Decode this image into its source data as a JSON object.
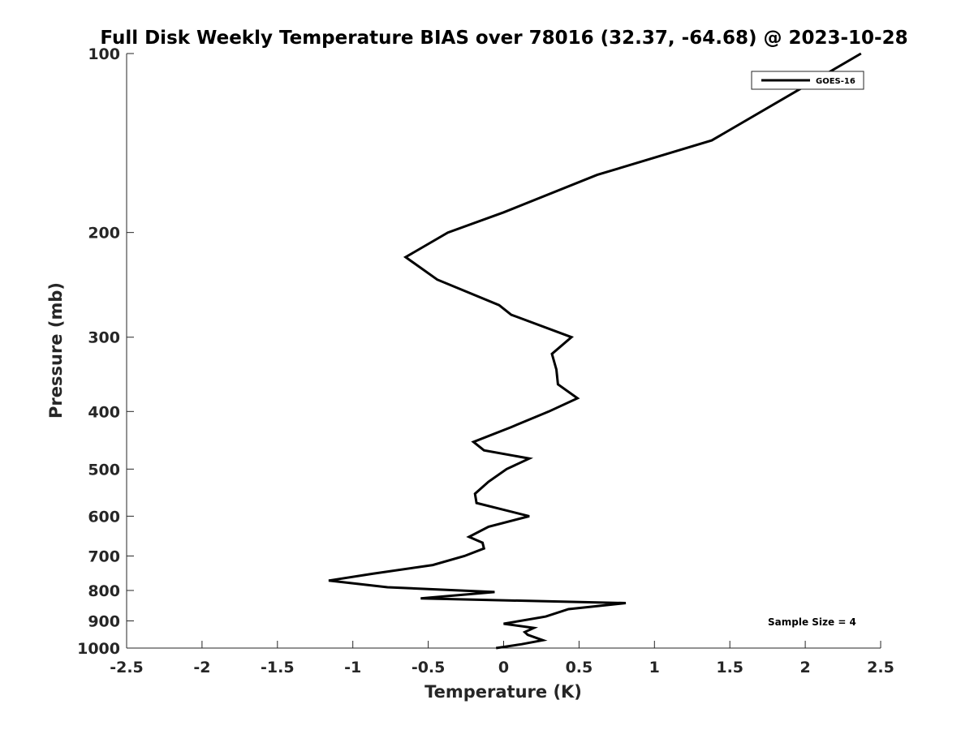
{
  "chart_data": {
    "type": "line",
    "title": "Full Disk Weekly Temperature BIAS over 78016 (32.37, -64.68) @ 2023-10-28",
    "xlabel": "Temperature (K)",
    "ylabel": "Pressure (mb)",
    "xlim": [
      -2.5,
      2.5
    ],
    "ylim": [
      100,
      1000
    ],
    "y_scale": "log",
    "y_reversed": true,
    "grid": false,
    "legend_position": "top-right",
    "x_ticks": [
      "-2.5",
      "-2",
      "-1.5",
      "-1",
      "-0.5",
      "0",
      "0.5",
      "1",
      "1.5",
      "2",
      "2.5"
    ],
    "x_tick_values": [
      -2.5,
      -2,
      -1.5,
      -1,
      -0.5,
      0,
      0.5,
      1,
      1.5,
      2,
      2.5
    ],
    "y_ticks": [
      "100",
      "200",
      "300",
      "400",
      "500",
      "600",
      "700",
      "800",
      "900",
      "1000"
    ],
    "y_tick_values": [
      100,
      200,
      300,
      400,
      500,
      600,
      700,
      800,
      900,
      1000
    ],
    "series": [
      {
        "name": "GOES-16",
        "color": "#000000",
        "points": [
          {
            "x": 2.37,
            "p": 100
          },
          {
            "x": 1.38,
            "p": 140
          },
          {
            "x": 0.62,
            "p": 160
          },
          {
            "x": 0.0,
            "p": 185
          },
          {
            "x": -0.37,
            "p": 200
          },
          {
            "x": -0.65,
            "p": 220
          },
          {
            "x": -0.44,
            "p": 240
          },
          {
            "x": -0.03,
            "p": 265
          },
          {
            "x": 0.05,
            "p": 275
          },
          {
            "x": 0.45,
            "p": 300
          },
          {
            "x": 0.32,
            "p": 320
          },
          {
            "x": 0.35,
            "p": 340
          },
          {
            "x": 0.36,
            "p": 360
          },
          {
            "x": 0.49,
            "p": 380
          },
          {
            "x": 0.3,
            "p": 400
          },
          {
            "x": 0.05,
            "p": 425
          },
          {
            "x": -0.2,
            "p": 450
          },
          {
            "x": -0.13,
            "p": 465
          },
          {
            "x": 0.17,
            "p": 480
          },
          {
            "x": 0.02,
            "p": 500
          },
          {
            "x": -0.1,
            "p": 525
          },
          {
            "x": -0.19,
            "p": 550
          },
          {
            "x": -0.18,
            "p": 570
          },
          {
            "x": 0.17,
            "p": 600
          },
          {
            "x": -0.1,
            "p": 625
          },
          {
            "x": -0.23,
            "p": 650
          },
          {
            "x": -0.14,
            "p": 665
          },
          {
            "x": -0.13,
            "p": 680
          },
          {
            "x": -0.26,
            "p": 700
          },
          {
            "x": -0.47,
            "p": 725
          },
          {
            "x": -0.87,
            "p": 750
          },
          {
            "x": -1.16,
            "p": 770
          },
          {
            "x": -0.77,
            "p": 790
          },
          {
            "x": -0.06,
            "p": 805
          },
          {
            "x": -0.55,
            "p": 825
          },
          {
            "x": 0.81,
            "p": 840
          },
          {
            "x": 0.43,
            "p": 860
          },
          {
            "x": 0.28,
            "p": 885
          },
          {
            "x": 0.0,
            "p": 910
          },
          {
            "x": 0.2,
            "p": 925
          },
          {
            "x": 0.14,
            "p": 940
          },
          {
            "x": 0.16,
            "p": 950
          },
          {
            "x": 0.26,
            "p": 970
          },
          {
            "x": 0.12,
            "p": 985
          },
          {
            "x": -0.05,
            "p": 1000
          }
        ]
      }
    ],
    "annotations": [
      "Sample Size = 4"
    ]
  }
}
